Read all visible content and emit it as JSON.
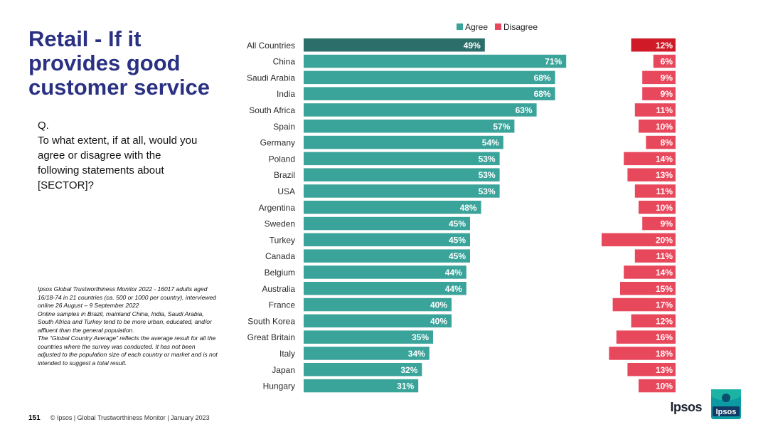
{
  "page": {
    "title": "Retail - If it provides good customer service",
    "question_label": "Q.",
    "question_text": "To what extent, if at all, would you agree or disagree with the following statements about [SECTOR]?",
    "methodology": [
      "Ipsos Global Trustworthiness Monitor 2022 - 16017 adults aged 16/18-74 in 21 countries (ca. 500 or 1000 per country), interviewed online 26 August – 9 September 2022",
      "Online samples in Brazil, mainland China, India, Saudi Arabia, South Africa and Turkey tend to be more urban, educated, and/or affluent than the general population.",
      "The “Global Country Average” reflects the average result for all the countries where the survey was conducted. It has not been adjusted to the population size of each country or market and is not intended to suggest a total result."
    ],
    "footer_page": "151",
    "footer_text": "© Ipsos | Global Trustworthiness Monitor | January 2023",
    "brand": "Ipsos",
    "logo_text": "Ipsos"
  },
  "chart_data": {
    "type": "bar",
    "orientation": "horizontal",
    "legend": [
      "Agree",
      "Disagree"
    ],
    "legend_position": "top",
    "categories": [
      "All Countries",
      "China",
      "Saudi Arabia",
      "India",
      "South Africa",
      "Spain",
      "Germany",
      "Poland",
      "Brazil",
      "USA",
      "Argentina",
      "Sweden",
      "Turkey",
      "Canada",
      "Belgium",
      "Australia",
      "France",
      "South Korea",
      "Great Britain",
      "Italy",
      "Japan",
      "Hungary"
    ],
    "series": [
      {
        "name": "Agree",
        "values": [
          49,
          71,
          68,
          68,
          63,
          57,
          54,
          53,
          53,
          53,
          48,
          45,
          45,
          45,
          44,
          44,
          40,
          40,
          35,
          34,
          32,
          31
        ],
        "labels": [
          "49%",
          "71%",
          "68%",
          "68%",
          "63%",
          "57%",
          "54%",
          "53%",
          "53%",
          "53%",
          "48%",
          "45%",
          "45%",
          "45%",
          "44%",
          "44%",
          "40%",
          "40%",
          "35%",
          "34%",
          "32%",
          "31%"
        ]
      },
      {
        "name": "Disagree",
        "values": [
          12,
          6,
          9,
          9,
          11,
          10,
          8,
          14,
          13,
          11,
          10,
          9,
          20,
          11,
          14,
          15,
          17,
          12,
          16,
          18,
          13,
          10
        ],
        "labels": [
          "12%",
          "6%",
          "9%",
          "9%",
          "11%",
          "10%",
          "8%",
          "14%",
          "13%",
          "11%",
          "10%",
          "9%",
          "20%",
          "11%",
          "14%",
          "15%",
          "17%",
          "12%",
          "16%",
          "18%",
          "13%",
          "10%"
        ]
      }
    ],
    "colors": {
      "agree": "#3aa39a",
      "agree_highlight": "#2c6e6a",
      "disagree": "#e8485c",
      "disagree_highlight": "#d01a28",
      "label_dark": "#2b2b2b",
      "bar_text": "#ffffff"
    },
    "highlight_category": "All Countries"
  }
}
